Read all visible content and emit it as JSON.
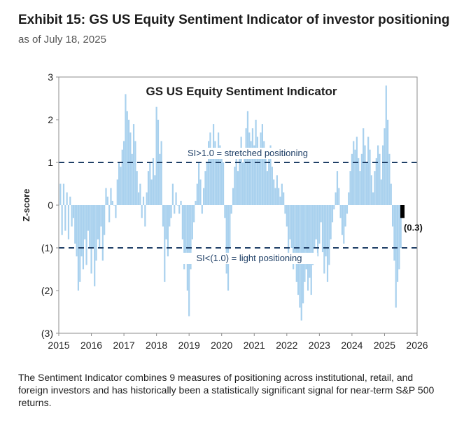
{
  "header": {
    "title": "Exhibit 15: GS US Equity Sentiment Indicator of investor positioning",
    "subtitle": "as of July 18, 2025"
  },
  "footnote": "The Sentiment Indicator combines 9 measures of positioning across institutional, retail, and foreign investors and has historically been a statistically significant signal for near-term S&P 500 returns.",
  "chart_data": {
    "type": "bar",
    "title": "GS US Equity  Sentiment Indicator",
    "ylabel": "Z-score",
    "xlabel": "",
    "xlim": [
      2015,
      2026
    ],
    "ylim": [
      -3,
      3
    ],
    "x_ticks": [
      "2015",
      "2016",
      "2017",
      "2018",
      "2019",
      "2020",
      "2021",
      "2022",
      "2023",
      "2024",
      "2025",
      "2026"
    ],
    "y_ticks": [
      {
        "value": 3,
        "label": "3"
      },
      {
        "value": 2,
        "label": "2"
      },
      {
        "value": 1,
        "label": "1"
      },
      {
        "value": 0,
        "label": "0"
      },
      {
        "value": -1,
        "label": "(1)"
      },
      {
        "value": -2,
        "label": "(2)"
      },
      {
        "value": -3,
        "label": "(3)"
      }
    ],
    "grid": false,
    "bar_color": "#a9d1ee",
    "highlight_color": "#000000",
    "reference_lines": [
      {
        "y": 1,
        "label": "SI>1.0 = stretched positioning",
        "color": "#1f3f66"
      },
      {
        "y": -1,
        "label": "SI<(1.0) = light positioning",
        "color": "#1f3f66"
      }
    ],
    "latest_point": {
      "x": 2025.55,
      "y": -0.3,
      "label": "(0.3)"
    },
    "series_points": [
      [
        2015.0,
        0.0
      ],
      [
        2015.05,
        0.5
      ],
      [
        2015.1,
        -0.7
      ],
      [
        2015.15,
        0.5
      ],
      [
        2015.2,
        -0.6
      ],
      [
        2015.25,
        0.3
      ],
      [
        2015.3,
        -0.8
      ],
      [
        2015.35,
        0.2
      ],
      [
        2015.4,
        -0.5
      ],
      [
        2015.45,
        -0.3
      ],
      [
        2015.5,
        -0.9
      ],
      [
        2015.55,
        -1.2
      ],
      [
        2015.6,
        -2.0
      ],
      [
        2015.65,
        -1.8
      ],
      [
        2015.7,
        -1.2
      ],
      [
        2015.75,
        -1.5
      ],
      [
        2015.8,
        -0.8
      ],
      [
        2015.85,
        -1.4
      ],
      [
        2015.9,
        -0.6
      ],
      [
        2015.95,
        -1.0
      ],
      [
        2016.0,
        -1.6
      ],
      [
        2016.05,
        -1.0
      ],
      [
        2016.1,
        -1.9
      ],
      [
        2016.15,
        -1.3
      ],
      [
        2016.2,
        -0.8
      ],
      [
        2016.25,
        -1.0
      ],
      [
        2016.3,
        -0.5
      ],
      [
        2016.35,
        -1.3
      ],
      [
        2016.4,
        -0.7
      ],
      [
        2016.45,
        0.4
      ],
      [
        2016.5,
        0.2
      ],
      [
        2016.55,
        -0.4
      ],
      [
        2016.6,
        0.4
      ],
      [
        2016.65,
        0.1
      ],
      [
        2016.7,
        0.0
      ],
      [
        2016.75,
        -0.3
      ],
      [
        2016.8,
        0.6
      ],
      [
        2016.85,
        1.0
      ],
      [
        2016.9,
        0.9
      ],
      [
        2016.95,
        1.3
      ],
      [
        2017.0,
        1.5
      ],
      [
        2017.05,
        2.6
      ],
      [
        2017.1,
        2.2
      ],
      [
        2017.15,
        2.0
      ],
      [
        2017.2,
        1.7
      ],
      [
        2017.25,
        1.2
      ],
      [
        2017.3,
        1.9
      ],
      [
        2017.35,
        1.5
      ],
      [
        2017.4,
        0.8
      ],
      [
        2017.45,
        0.3
      ],
      [
        2017.5,
        0.5
      ],
      [
        2017.55,
        -0.3
      ],
      [
        2017.6,
        0.2
      ],
      [
        2017.65,
        -0.5
      ],
      [
        2017.7,
        0.3
      ],
      [
        2017.75,
        0.8
      ],
      [
        2017.8,
        1.0
      ],
      [
        2017.85,
        0.6
      ],
      [
        2017.9,
        1.1
      ],
      [
        2017.95,
        0.7
      ],
      [
        2018.0,
        2.3
      ],
      [
        2018.05,
        2.0
      ],
      [
        2018.1,
        1.2
      ],
      [
        2018.15,
        1.5
      ],
      [
        2018.2,
        -0.5
      ],
      [
        2018.25,
        -1.8
      ],
      [
        2018.3,
        -0.8
      ],
      [
        2018.35,
        -1.2
      ],
      [
        2018.4,
        -0.5
      ],
      [
        2018.45,
        -0.3
      ],
      [
        2018.5,
        0.5
      ],
      [
        2018.55,
        -0.2
      ],
      [
        2018.6,
        0.3
      ],
      [
        2018.65,
        0.0
      ],
      [
        2018.7,
        -0.2
      ],
      [
        2018.75,
        0.1
      ],
      [
        2018.8,
        -0.8
      ],
      [
        2018.85,
        -1.5
      ],
      [
        2018.9,
        -1.2
      ],
      [
        2018.95,
        -2.0
      ],
      [
        2019.0,
        -2.6
      ],
      [
        2019.05,
        -1.5
      ],
      [
        2019.1,
        -0.8
      ],
      [
        2019.15,
        -0.4
      ],
      [
        2019.2,
        0.1
      ],
      [
        2019.25,
        0.5
      ],
      [
        2019.3,
        1.0
      ],
      [
        2019.35,
        0.6
      ],
      [
        2019.4,
        -0.2
      ],
      [
        2019.45,
        0.4
      ],
      [
        2019.5,
        0.8
      ],
      [
        2019.55,
        1.0
      ],
      [
        2019.6,
        1.5
      ],
      [
        2019.65,
        1.7
      ],
      [
        2019.7,
        1.3
      ],
      [
        2019.75,
        1.9
      ],
      [
        2019.8,
        1.5
      ],
      [
        2019.85,
        1.1
      ],
      [
        2019.9,
        1.7
      ],
      [
        2019.95,
        1.4
      ],
      [
        2020.0,
        1.2
      ],
      [
        2020.05,
        1.0
      ],
      [
        2020.1,
        -0.3
      ],
      [
        2020.15,
        -1.6
      ],
      [
        2020.2,
        -2.0
      ],
      [
        2020.25,
        -1.0
      ],
      [
        2020.3,
        -0.2
      ],
      [
        2020.35,
        0.4
      ],
      [
        2020.4,
        0.9
      ],
      [
        2020.45,
        1.2
      ],
      [
        2020.5,
        0.8
      ],
      [
        2020.55,
        1.3
      ],
      [
        2020.6,
        1.6
      ],
      [
        2020.65,
        1.0
      ],
      [
        2020.7,
        1.3
      ],
      [
        2020.75,
        1.8
      ],
      [
        2020.8,
        2.2
      ],
      [
        2020.85,
        1.7
      ],
      [
        2020.9,
        1.5
      ],
      [
        2020.95,
        1.8
      ],
      [
        2021.0,
        1.4
      ],
      [
        2021.05,
        2.0
      ],
      [
        2021.1,
        1.6
      ],
      [
        2021.15,
        1.3
      ],
      [
        2021.2,
        1.7
      ],
      [
        2021.25,
        1.9
      ],
      [
        2021.3,
        1.5
      ],
      [
        2021.35,
        1.2
      ],
      [
        2021.4,
        0.8
      ],
      [
        2021.45,
        1.1
      ],
      [
        2021.5,
        1.4
      ],
      [
        2021.55,
        0.9
      ],
      [
        2021.6,
        0.6
      ],
      [
        2021.65,
        0.4
      ],
      [
        2021.7,
        0.7
      ],
      [
        2021.75,
        0.4
      ],
      [
        2021.8,
        0.2
      ],
      [
        2021.85,
        0.5
      ],
      [
        2021.9,
        0.3
      ],
      [
        2021.95,
        -0.2
      ],
      [
        2022.0,
        -0.5
      ],
      [
        2022.05,
        -1.2
      ],
      [
        2022.1,
        -0.8
      ],
      [
        2022.15,
        -1.0
      ],
      [
        2022.2,
        -1.5
      ],
      [
        2022.25,
        -1.2
      ],
      [
        2022.3,
        -1.8
      ],
      [
        2022.35,
        -2.1
      ],
      [
        2022.4,
        -2.4
      ],
      [
        2022.45,
        -2.7
      ],
      [
        2022.5,
        -2.3
      ],
      [
        2022.55,
        -1.8
      ],
      [
        2022.6,
        -1.5
      ],
      [
        2022.65,
        -2.0
      ],
      [
        2022.7,
        -1.7
      ],
      [
        2022.75,
        -2.1
      ],
      [
        2022.8,
        -1.4
      ],
      [
        2022.85,
        -1.0
      ],
      [
        2022.9,
        -0.8
      ],
      [
        2022.95,
        -1.2
      ],
      [
        2023.0,
        -0.9
      ],
      [
        2023.05,
        -0.4
      ],
      [
        2023.1,
        -1.1
      ],
      [
        2023.15,
        -1.6
      ],
      [
        2023.2,
        -1.2
      ],
      [
        2023.25,
        -1.8
      ],
      [
        2023.3,
        -1.4
      ],
      [
        2023.35,
        -0.8
      ],
      [
        2023.4,
        -0.4
      ],
      [
        2023.45,
        -0.1
      ],
      [
        2023.5,
        0.3
      ],
      [
        2023.55,
        0.8
      ],
      [
        2023.6,
        0.4
      ],
      [
        2023.65,
        -0.3
      ],
      [
        2023.7,
        -0.7
      ],
      [
        2023.75,
        -0.9
      ],
      [
        2023.8,
        -0.5
      ],
      [
        2023.85,
        -0.2
      ],
      [
        2023.9,
        0.3
      ],
      [
        2023.95,
        0.8
      ],
      [
        2024.0,
        1.2
      ],
      [
        2024.05,
        1.5
      ],
      [
        2024.1,
        1.3
      ],
      [
        2024.15,
        1.6
      ],
      [
        2024.2,
        1.1
      ],
      [
        2024.25,
        0.8
      ],
      [
        2024.3,
        1.2
      ],
      [
        2024.35,
        1.8
      ],
      [
        2024.4,
        1.4
      ],
      [
        2024.45,
        1.0
      ],
      [
        2024.5,
        1.6
      ],
      [
        2024.55,
        1.3
      ],
      [
        2024.6,
        0.7
      ],
      [
        2024.65,
        0.3
      ],
      [
        2024.7,
        0.8
      ],
      [
        2024.75,
        1.1
      ],
      [
        2024.8,
        1.4
      ],
      [
        2024.85,
        1.2
      ],
      [
        2024.9,
        0.6
      ],
      [
        2024.95,
        1.4
      ],
      [
        2025.0,
        1.8
      ],
      [
        2025.05,
        2.8
      ],
      [
        2025.1,
        2.0
      ],
      [
        2025.15,
        1.2
      ],
      [
        2025.2,
        0.5
      ],
      [
        2025.25,
        -0.5
      ],
      [
        2025.3,
        -1.3
      ],
      [
        2025.35,
        -2.4
      ],
      [
        2025.4,
        -1.8
      ],
      [
        2025.45,
        -1.5
      ],
      [
        2025.5,
        -1.0
      ]
    ]
  }
}
